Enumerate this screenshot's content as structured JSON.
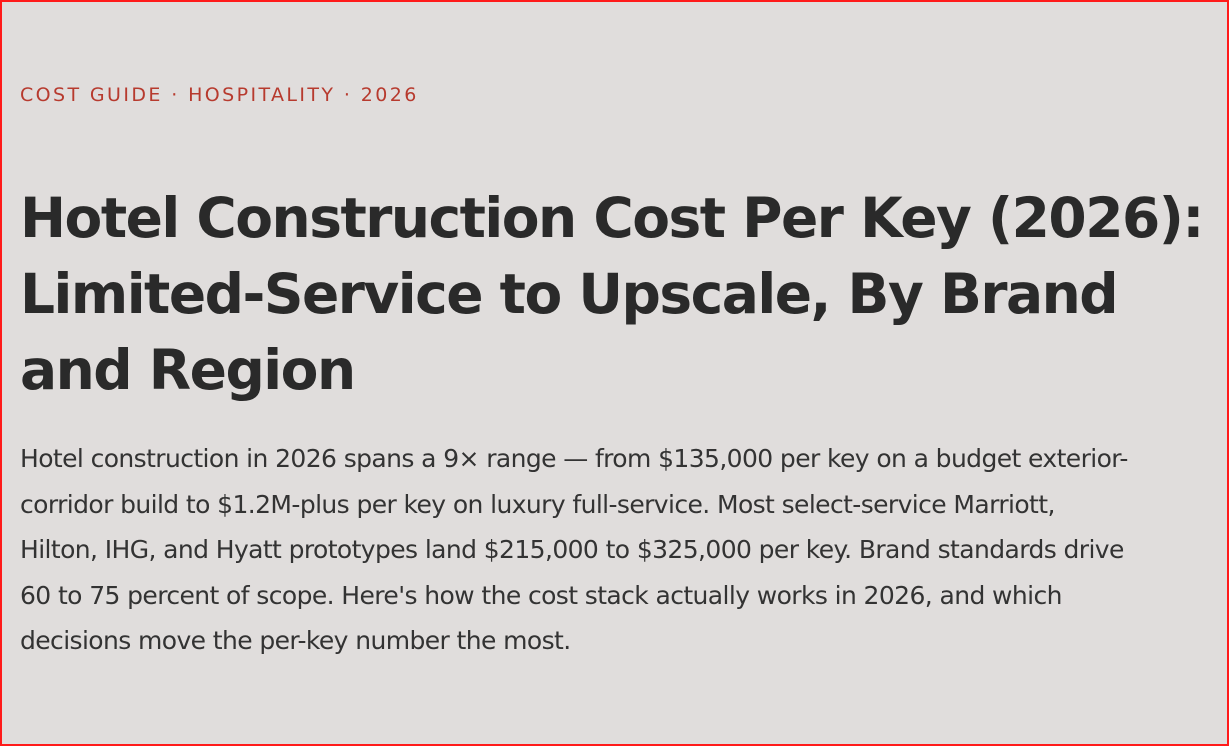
{
  "article": {
    "eyebrow": "COST GUIDE · HOSPITALITY · 2026",
    "title": "Hotel Construction Cost Per Key (2026): Limited-Service to Upscale, By Brand and Region",
    "lede": "Hotel construction in 2026 spans a 9× range — from $135,000 per key on a budget exterior-corridor build to $1.2M-plus per key on luxury full-service. Most select-service Marriott, Hilton, IHG, and Hyatt prototypes land $215,000 to $325,000 per key. Brand standards drive 60 to 75 percent of scope. Here's how the cost stack actually works in 2026, and which decisions move the per-key number the most."
  },
  "colors": {
    "background": "#e0dddc",
    "frame_border": "#ff1a1a",
    "eyebrow": "#b73a2e",
    "title": "#2a2a2a",
    "body_text": "#333333"
  }
}
